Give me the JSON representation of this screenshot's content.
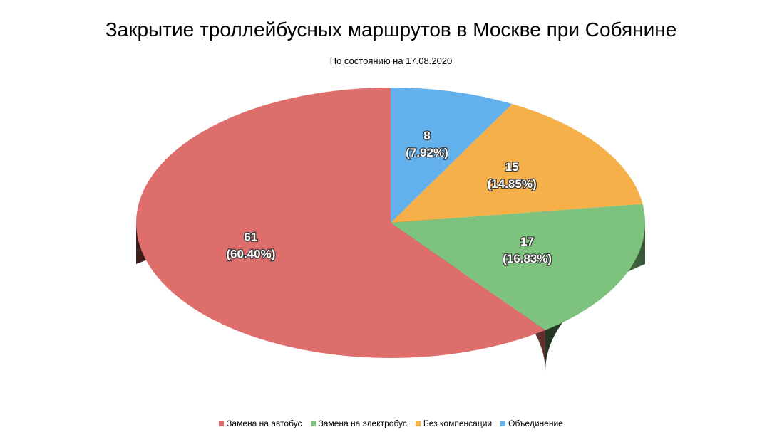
{
  "chart_data": {
    "type": "pie",
    "style": "3d",
    "title": "Закрытие троллейбусных маршрутов в Москве при Собянине",
    "subtitle": "По состоянию на 17.08.2020",
    "legend_position": "bottom",
    "slices": [
      {
        "label": "Замена на автобус",
        "value": 61,
        "percent_label": "(60.40%)",
        "value_label": "61",
        "color": "#dd6e6b"
      },
      {
        "label": "Замена на электробус",
        "value": 17,
        "percent_label": "(16.83%)",
        "value_label": "17",
        "color": "#7dc27d"
      },
      {
        "label": "Без компенсации",
        "value": 15,
        "percent_label": "(14.85%)",
        "value_label": "15",
        "color": "#f5b04a"
      },
      {
        "label": "Объединение",
        "value": 8,
        "percent_label": "(7.92%)",
        "value_label": "8",
        "color": "#62b0ec"
      }
    ]
  }
}
